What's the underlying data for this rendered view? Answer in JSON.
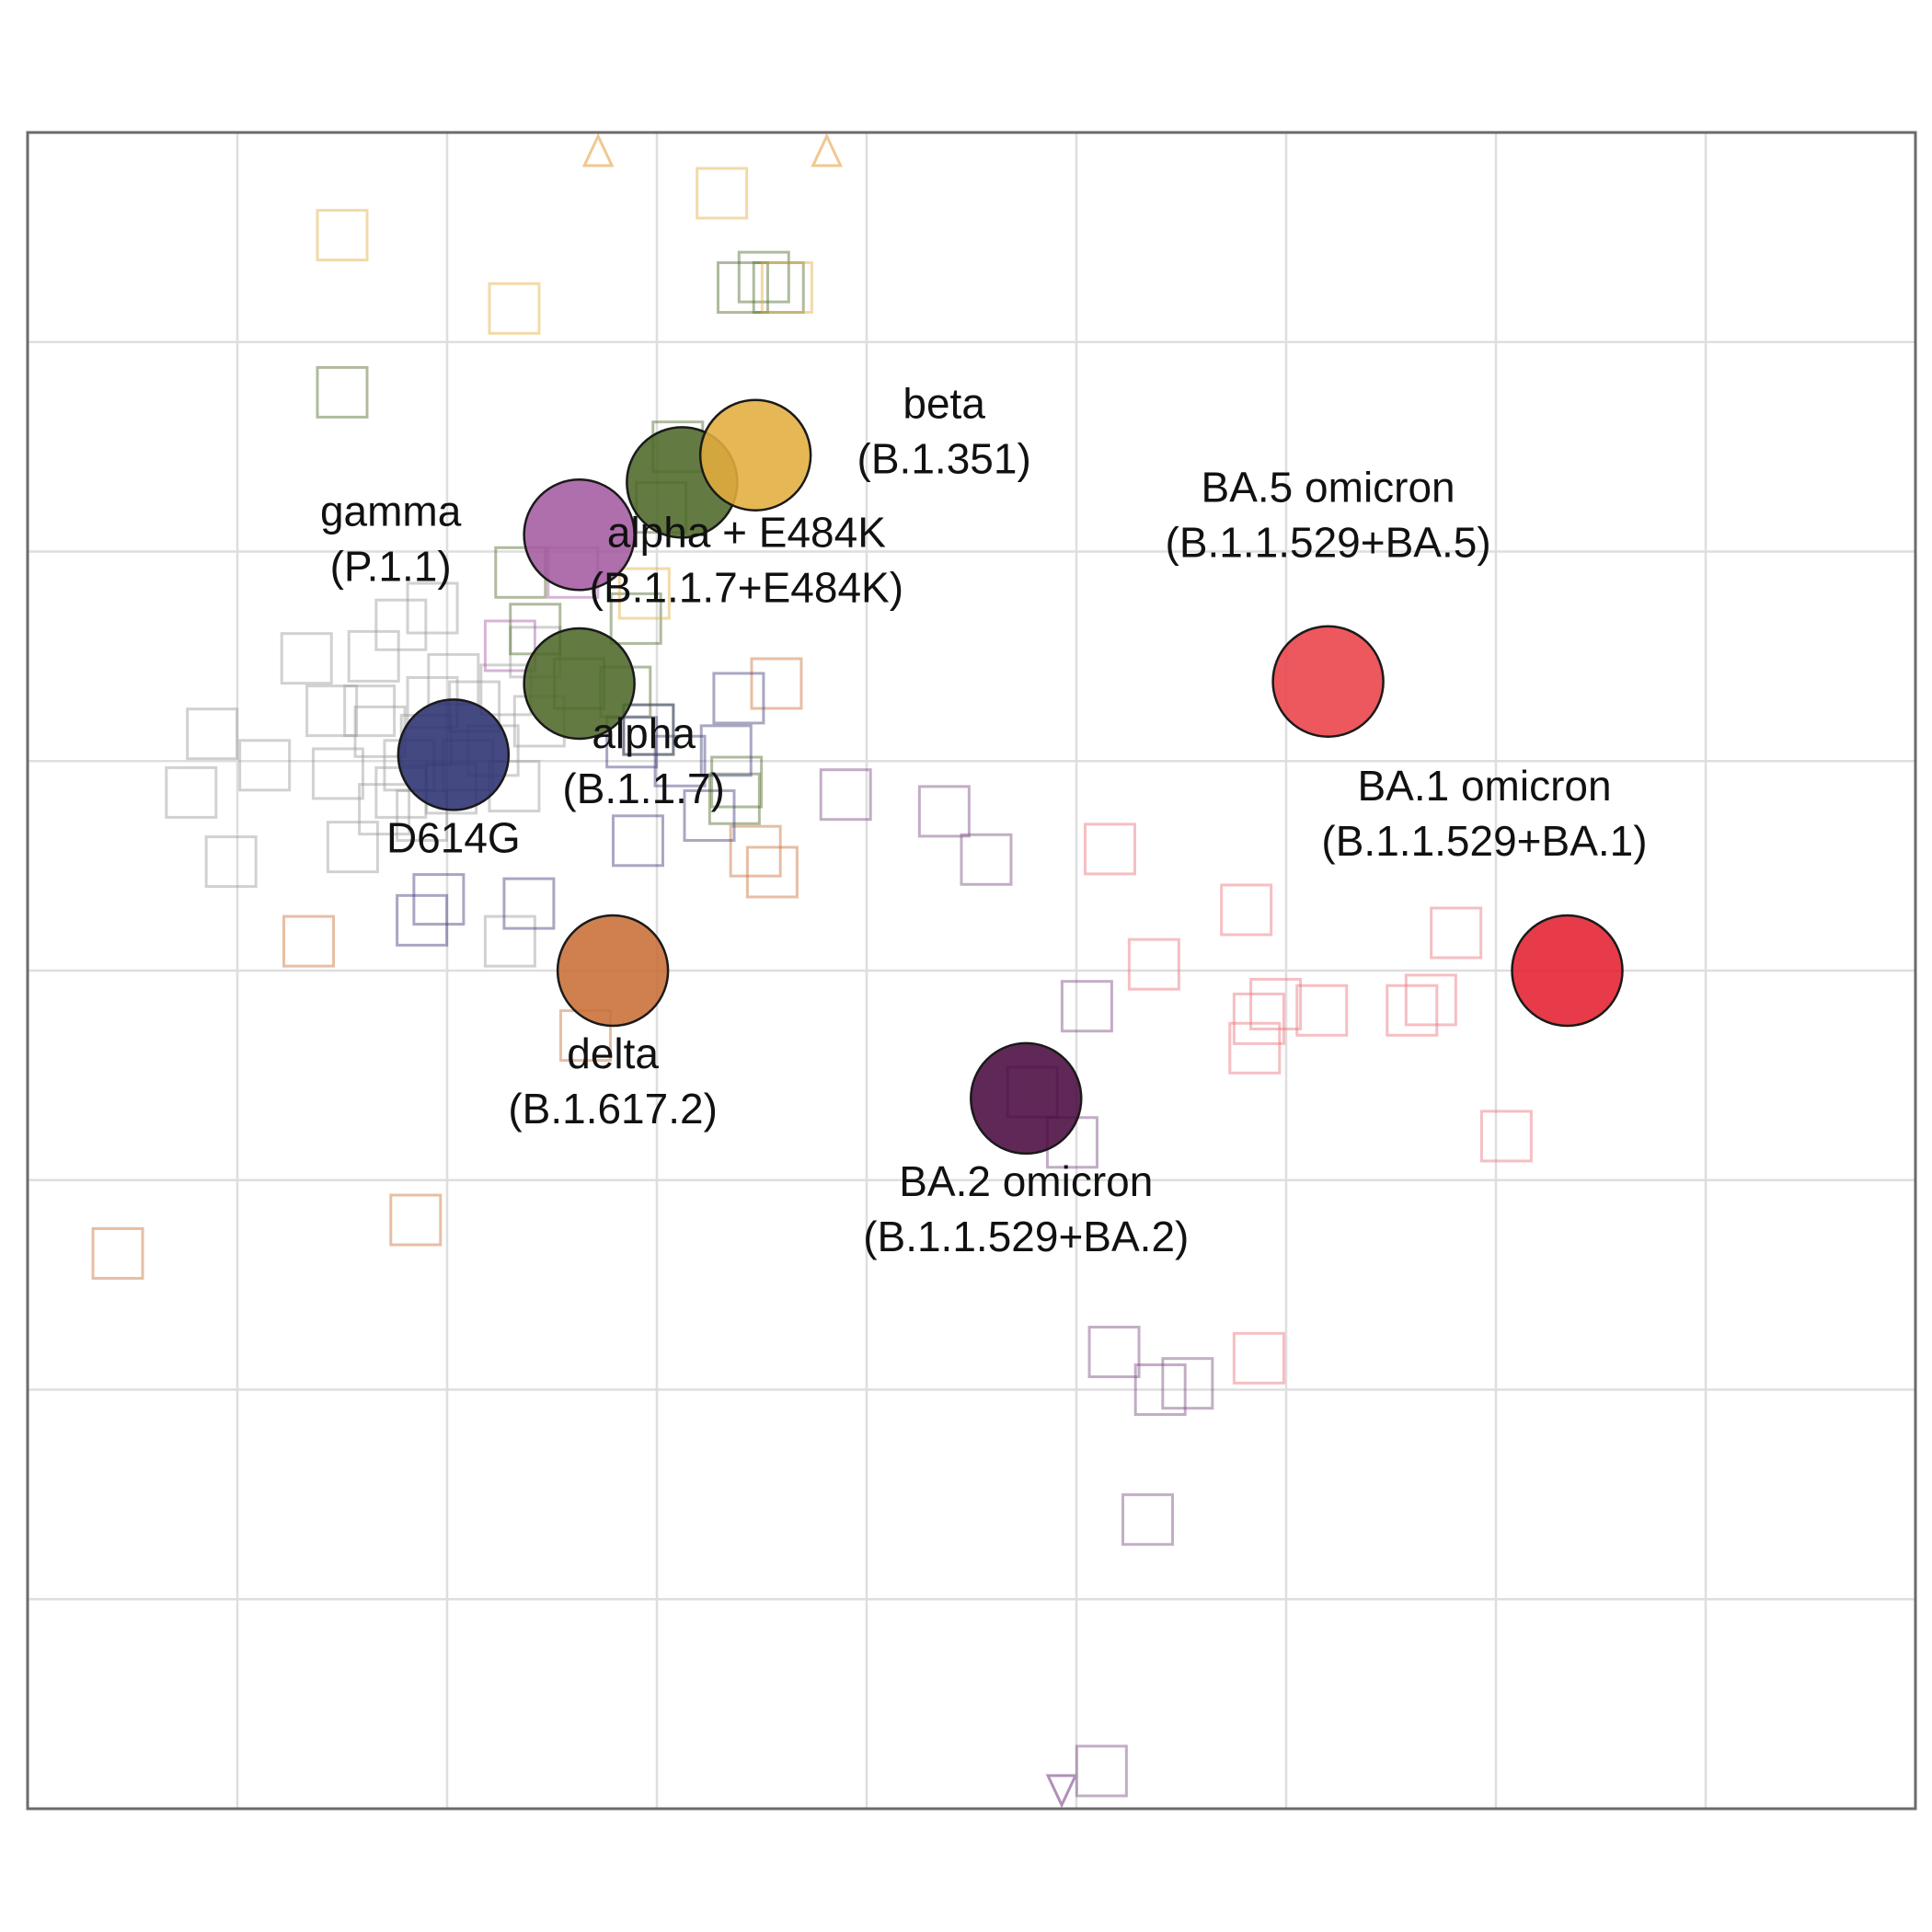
{
  "chart_data": {
    "type": "scatter",
    "title": "",
    "xlabel": "",
    "ylabel": "",
    "xlim": [
      0,
      9
    ],
    "ylim": [
      0,
      8
    ],
    "grid": true,
    "legend": "none",
    "antigens": [
      {
        "name": "D614G",
        "lines": [
          "D614G"
        ],
        "x": 2.03,
        "y": 5.03,
        "color": "#2b3070",
        "label_pos": "below"
      },
      {
        "name": "alpha",
        "lines": [
          "alpha",
          "(B.1.1.7)"
        ],
        "x": 2.63,
        "y": 5.37,
        "color": "#4d6828",
        "label_pos": "below-right"
      },
      {
        "name": "alpha + E484K",
        "lines": [
          "alpha + E484K",
          "(B.1.1.7+E484K)"
        ],
        "x": 3.12,
        "y": 6.33,
        "color": "#4d6828",
        "label_pos": "below-right"
      },
      {
        "name": "gamma",
        "lines": [
          "gamma",
          "(P.1.1)"
        ],
        "x": 2.63,
        "y": 6.08,
        "color": "#a45aa0",
        "label_pos": "left"
      },
      {
        "name": "beta",
        "lines": [
          "beta",
          "(B.1.351)"
        ],
        "x": 3.47,
        "y": 6.46,
        "color": "#e3ad3d",
        "label_pos": "right"
      },
      {
        "name": "delta",
        "lines": [
          "delta",
          "(B.1.617.2)"
        ],
        "x": 2.79,
        "y": 4.0,
        "color": "#c96e35",
        "label_pos": "below"
      },
      {
        "name": "BA.2 omicron",
        "lines": [
          "BA.2 omicron",
          "(B.1.1.529+BA.2)"
        ],
        "x": 4.76,
        "y": 3.39,
        "color": "#4a0a40",
        "label_pos": "below"
      },
      {
        "name": "BA.5 omicron",
        "lines": [
          "BA.5 omicron",
          "(B.1.1.529+BA.5)"
        ],
        "x": 6.2,
        "y": 5.38,
        "color": "#ea4048",
        "label_pos": "above"
      },
      {
        "name": "BA.1 omicron",
        "lines": [
          "BA.1 omicron",
          "(B.1.1.529+BA.1)"
        ],
        "x": 7.34,
        "y": 4.0,
        "color": "#e42030",
        "label_pos": "above-left"
      }
    ],
    "sera": [
      {
        "group": "D614G",
        "color": "#9a9a9a",
        "points": [
          [
            1.78,
            5.65
          ],
          [
            1.68,
            5.14
          ],
          [
            1.82,
            4.98
          ],
          [
            1.7,
            4.77
          ],
          [
            1.55,
            4.59
          ],
          [
            1.33,
            5.49
          ],
          [
            1.45,
            5.24
          ],
          [
            1.63,
            5.24
          ],
          [
            1.48,
            4.94
          ],
          [
            1.93,
            5.28
          ],
          [
            2.03,
            5.39
          ],
          [
            2.13,
            5.26
          ],
          [
            2.28,
            5.34
          ],
          [
            1.9,
            5.1
          ],
          [
            2.22,
            5.05
          ],
          [
            2.1,
            4.98
          ],
          [
            2.02,
            4.87
          ],
          [
            1.78,
            4.85
          ],
          [
            1.88,
            4.74
          ],
          [
            2.32,
            4.88
          ],
          [
            2.44,
            5.19
          ],
          [
            1.93,
            5.73
          ],
          [
            2.42,
            5.52
          ],
          [
            1.65,
            5.5
          ],
          [
            1.13,
            4.98
          ],
          [
            0.88,
            5.13
          ],
          [
            0.78,
            4.85
          ],
          [
            0.97,
            4.52
          ],
          [
            2.3,
            4.14
          ]
        ]
      },
      {
        "group": "alpha",
        "color": "#4d6828",
        "points": [
          [
            2.85,
            5.33
          ],
          [
            2.9,
            5.68
          ],
          [
            2.63,
            5.37
          ],
          [
            2.96,
            5.15
          ]
        ]
      },
      {
        "group": "alpha + E484K",
        "color": "#4d6828",
        "points": [
          [
            1.5,
            6.76
          ],
          [
            3.41,
            7.26
          ],
          [
            3.58,
            7.26
          ],
          [
            3.51,
            7.31
          ],
          [
            3.1,
            6.5
          ],
          [
            3.02,
            6.21
          ],
          [
            2.35,
            5.9
          ],
          [
            2.42,
            5.63
          ],
          [
            3.38,
            4.9
          ],
          [
            3.37,
            4.82
          ]
        ]
      },
      {
        "group": "beta",
        "color": "#e3ad3d",
        "points": [
          [
            1.5,
            7.51
          ],
          [
            2.32,
            7.16
          ],
          [
            3.31,
            7.71
          ],
          [
            3.62,
            7.26
          ],
          [
            2.94,
            5.8
          ]
        ]
      },
      {
        "group": "gamma",
        "color": "#a45aa0",
        "points": [
          [
            2.6,
            5.9
          ],
          [
            2.3,
            5.55
          ]
        ]
      },
      {
        "group": "delta",
        "color": "#c96e35",
        "points": [
          [
            3.57,
            5.37
          ],
          [
            3.47,
            4.57
          ],
          [
            3.55,
            4.47
          ],
          [
            1.34,
            4.14
          ],
          [
            2.66,
            3.69
          ],
          [
            1.85,
            2.81
          ],
          [
            0.43,
            2.65
          ]
        ]
      },
      {
        "group": "BA.2 omicron",
        "color": "#3d3b7a",
        "points": [
          [
            2.88,
            5.09
          ],
          [
            2.96,
            5.15
          ],
          [
            3.11,
            5.0
          ],
          [
            3.33,
            5.05
          ],
          [
            3.25,
            4.74
          ],
          [
            2.91,
            4.62
          ],
          [
            2.39,
            4.32
          ],
          [
            1.88,
            4.24
          ],
          [
            1.96,
            4.34
          ],
          [
            3.39,
            5.3
          ]
        ]
      },
      {
        "group": "BA.2 omicron",
        "color": "#7a4a80",
        "points": [
          [
            3.9,
            4.84
          ],
          [
            4.37,
            4.76
          ],
          [
            4.57,
            4.53
          ],
          [
            4.79,
            3.42
          ],
          [
            4.98,
            3.18
          ],
          [
            5.05,
            3.83
          ],
          [
            5.18,
            2.18
          ],
          [
            5.4,
            2.0
          ],
          [
            5.53,
            2.03
          ],
          [
            5.34,
            1.38
          ],
          [
            5.12,
            0.18
          ]
        ]
      },
      {
        "group": "BA.1 omicron",
        "color": "#e8707a",
        "points": [
          [
            5.16,
            4.58
          ],
          [
            5.37,
            4.03
          ],
          [
            5.81,
            4.29
          ],
          [
            5.87,
            3.77
          ],
          [
            5.95,
            3.84
          ],
          [
            5.85,
            3.63
          ],
          [
            6.17,
            3.81
          ],
          [
            6.6,
            3.81
          ],
          [
            6.69,
            3.86
          ],
          [
            6.81,
            4.18
          ],
          [
            7.05,
            3.21
          ],
          [
            5.87,
            2.15
          ]
        ]
      }
    ],
    "offscale": [
      {
        "dir": "up",
        "x": 2.72,
        "color": "#f0c890"
      },
      {
        "dir": "up",
        "x": 3.81,
        "color": "#f0c890"
      },
      {
        "dir": "down",
        "x": 4.93,
        "color": "#b090b8"
      }
    ]
  }
}
